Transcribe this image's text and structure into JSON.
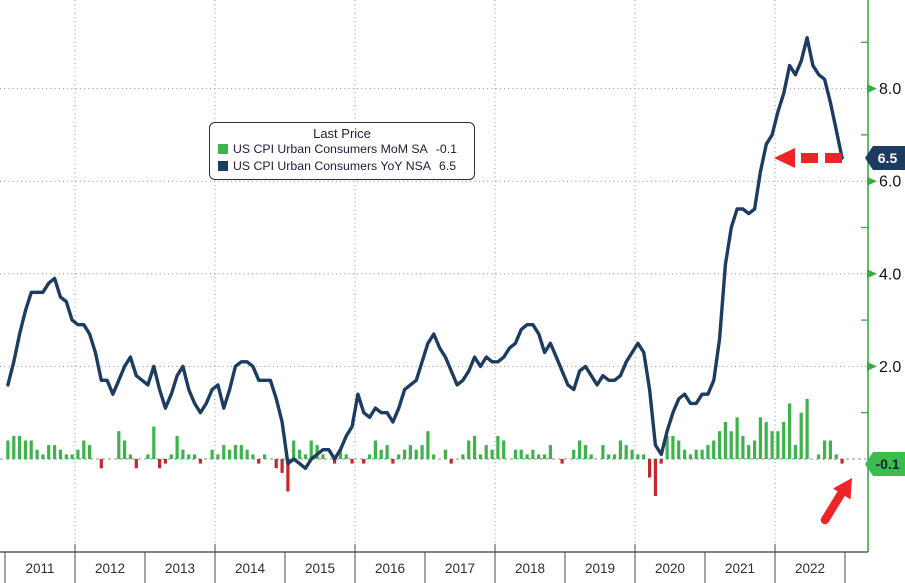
{
  "chart_data": {
    "type": "bar+line combo",
    "frequency": "monthly",
    "period": "2011-2022",
    "x_axis": {
      "years": [
        "2011",
        "2012",
        "2013",
        "2014",
        "2015",
        "2016",
        "2017",
        "2018",
        "2019",
        "2020",
        "2021",
        "2022"
      ]
    },
    "y_axis": {
      "side": "right",
      "range": [
        -1.2,
        9.6
      ],
      "major_ticks": [
        2,
        4,
        6,
        8
      ],
      "labels": [
        "2.0",
        "4.0",
        "6.0",
        "8.0"
      ],
      "minor_ticks": [
        1,
        3,
        5,
        7,
        9
      ],
      "color": "#35ad44",
      "text_color": "#111111"
    },
    "grid": {
      "on": true,
      "h_values": [
        2,
        4,
        6,
        8
      ],
      "v_year_indices": [
        1,
        3,
        5,
        7,
        9,
        11
      ],
      "zero_line_value": 0,
      "color": "#8f8f8f"
    },
    "series": [
      {
        "name": "US CPI Urban Consumers MoM SA",
        "type": "bar",
        "last": -0.1,
        "color_positive": "#3cb44a",
        "color_negative": "#c9252b",
        "values": [
          0.4,
          0.5,
          0.5,
          0.4,
          0.4,
          0.2,
          0.1,
          0.3,
          0.3,
          0.2,
          0.1,
          0.1,
          0.2,
          0.4,
          0.3,
          0.0,
          -0.2,
          0.0,
          0.0,
          0.6,
          0.4,
          0.1,
          -0.2,
          0.0,
          0.1,
          0.7,
          -0.2,
          -0.1,
          0.1,
          0.5,
          0.2,
          0.1,
          0.1,
          -0.1,
          0.0,
          0.2,
          0.1,
          0.3,
          0.2,
          0.3,
          0.3,
          0.2,
          0.1,
          -0.1,
          0.1,
          0.0,
          -0.2,
          -0.3,
          -0.7,
          0.4,
          0.2,
          0.1,
          0.4,
          0.3,
          0.1,
          0.0,
          -0.1,
          0.2,
          0.1,
          -0.1,
          0.0,
          -0.1,
          0.1,
          0.4,
          0.2,
          0.3,
          -0.1,
          0.1,
          0.2,
          0.3,
          0.2,
          0.3,
          0.6,
          0.1,
          0.0,
          0.2,
          -0.1,
          0.0,
          0.1,
          0.4,
          0.5,
          0.1,
          0.3,
          0.2,
          0.5,
          0.4,
          0.0,
          0.2,
          0.2,
          0.1,
          0.2,
          0.1,
          0.1,
          0.3,
          0.0,
          -0.1,
          0.0,
          0.2,
          0.4,
          0.3,
          0.1,
          0.0,
          0.3,
          0.1,
          0.1,
          0.4,
          0.3,
          0.2,
          0.1,
          0.1,
          -0.4,
          -0.8,
          -0.1,
          0.5,
          0.5,
          0.4,
          0.2,
          0.1,
          0.2,
          0.2,
          0.3,
          0.4,
          0.6,
          0.8,
          0.6,
          0.9,
          0.5,
          0.3,
          0.4,
          0.9,
          0.8,
          0.6,
          0.6,
          0.8,
          1.2,
          0.3,
          1.0,
          1.3,
          0.0,
          0.1,
          0.4,
          0.4,
          0.1,
          -0.1
        ]
      },
      {
        "name": "US CPI Urban Consumers YoY NSA",
        "type": "line",
        "last": 6.5,
        "color": "#1e3c5f",
        "values": [
          1.6,
          2.1,
          2.7,
          3.2,
          3.6,
          3.6,
          3.6,
          3.8,
          3.9,
          3.5,
          3.4,
          3.0,
          2.9,
          2.9,
          2.7,
          2.3,
          1.7,
          1.7,
          1.4,
          1.7,
          2.0,
          2.2,
          1.8,
          1.7,
          1.6,
          2.0,
          1.5,
          1.1,
          1.4,
          1.8,
          2.0,
          1.5,
          1.2,
          1.0,
          1.2,
          1.5,
          1.6,
          1.1,
          1.5,
          2.0,
          2.1,
          2.1,
          2.0,
          1.7,
          1.7,
          1.7,
          1.3,
          0.8,
          -0.1,
          0.0,
          -0.1,
          -0.2,
          0.0,
          0.1,
          0.2,
          0.2,
          0.0,
          0.2,
          0.5,
          0.7,
          1.4,
          1.0,
          0.9,
          1.1,
          1.0,
          1.0,
          0.8,
          1.1,
          1.5,
          1.6,
          1.7,
          2.1,
          2.5,
          2.7,
          2.4,
          2.2,
          1.9,
          1.6,
          1.7,
          1.9,
          2.2,
          2.0,
          2.2,
          2.1,
          2.1,
          2.2,
          2.4,
          2.5,
          2.8,
          2.9,
          2.9,
          2.7,
          2.3,
          2.5,
          2.2,
          1.9,
          1.6,
          1.5,
          1.9,
          2.0,
          1.8,
          1.6,
          1.8,
          1.7,
          1.7,
          1.8,
          2.1,
          2.3,
          2.5,
          2.3,
          1.5,
          0.3,
          0.1,
          0.6,
          1.0,
          1.3,
          1.4,
          1.2,
          1.2,
          1.4,
          1.4,
          1.7,
          2.6,
          4.2,
          5.0,
          5.4,
          5.4,
          5.3,
          5.4,
          6.2,
          6.8,
          7.0,
          7.5,
          7.9,
          8.5,
          8.3,
          8.6,
          9.1,
          8.5,
          8.3,
          8.2,
          7.7,
          7.1,
          6.5
        ]
      }
    ],
    "legend": {
      "title": "Last Price",
      "entries": [
        {
          "swatch": "#3cb44a",
          "label": "US CPI Urban Consumers MoM SA",
          "value": "-0.1"
        },
        {
          "swatch": "#1d3a5f",
          "label": "US CPI Urban Consumers YoY NSA",
          "value": "6.5"
        }
      ]
    },
    "badges": [
      {
        "text": "6.5",
        "bg": "#1d3a5f",
        "fg": "#ffffff",
        "value": 6.5
      },
      {
        "text": "-0.1",
        "bg": "#3cbc4c",
        "fg": "#0e2438",
        "value": -0.1
      }
    ],
    "annotations": [
      {
        "name": "yoy-last-arrow",
        "shape": "dashed-arrow-left",
        "color": "#ee2429",
        "at_value": 6.5
      },
      {
        "name": "mom-last-arrow",
        "shape": "arrow-up-right",
        "color": "#ee2429",
        "target": "last MoM bar (-0.1)"
      }
    ],
    "frame": {
      "bottom_line_color": "#3a3a3a",
      "year_text_color": "#2e2e2e"
    }
  }
}
